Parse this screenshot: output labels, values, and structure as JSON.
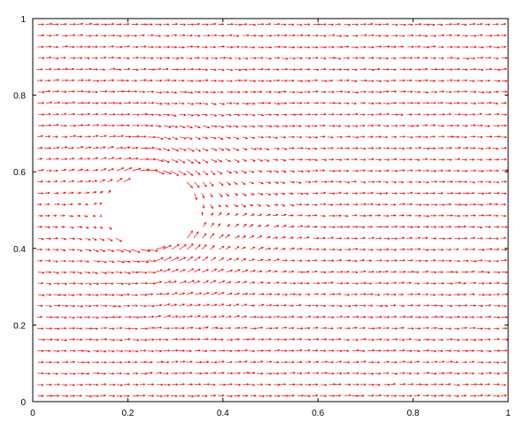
{
  "chart_data": {
    "type": "quiver",
    "title": "",
    "xlabel": "",
    "ylabel": "",
    "xlim": [
      0,
      1
    ],
    "ylim": [
      0,
      1
    ],
    "grid": false,
    "legend": "none",
    "x_ticks": [
      0,
      0.2,
      0.4,
      0.6,
      0.8,
      1
    ],
    "x_tick_labels": [
      "0",
      "0.2",
      "0.4",
      "0.6",
      "0.8",
      "1"
    ],
    "y_ticks": [
      0,
      0.2,
      0.4,
      0.6,
      0.8,
      1
    ],
    "y_tick_labels": [
      "0",
      "0.2",
      "0.4",
      "0.6",
      "0.8",
      "1"
    ],
    "field": {
      "description_free_stream": "uniform rightward flow",
      "free_stream_u": 1.0,
      "obstacle": {
        "shape": "circle",
        "center": [
          0.255,
          0.495
        ],
        "radius": 0.095
      },
      "grid_nx": 60,
      "grid_ny": 34,
      "vector_scale": 0.012
    },
    "arrow_color": "#ff0000",
    "axis_color": "#000000"
  }
}
